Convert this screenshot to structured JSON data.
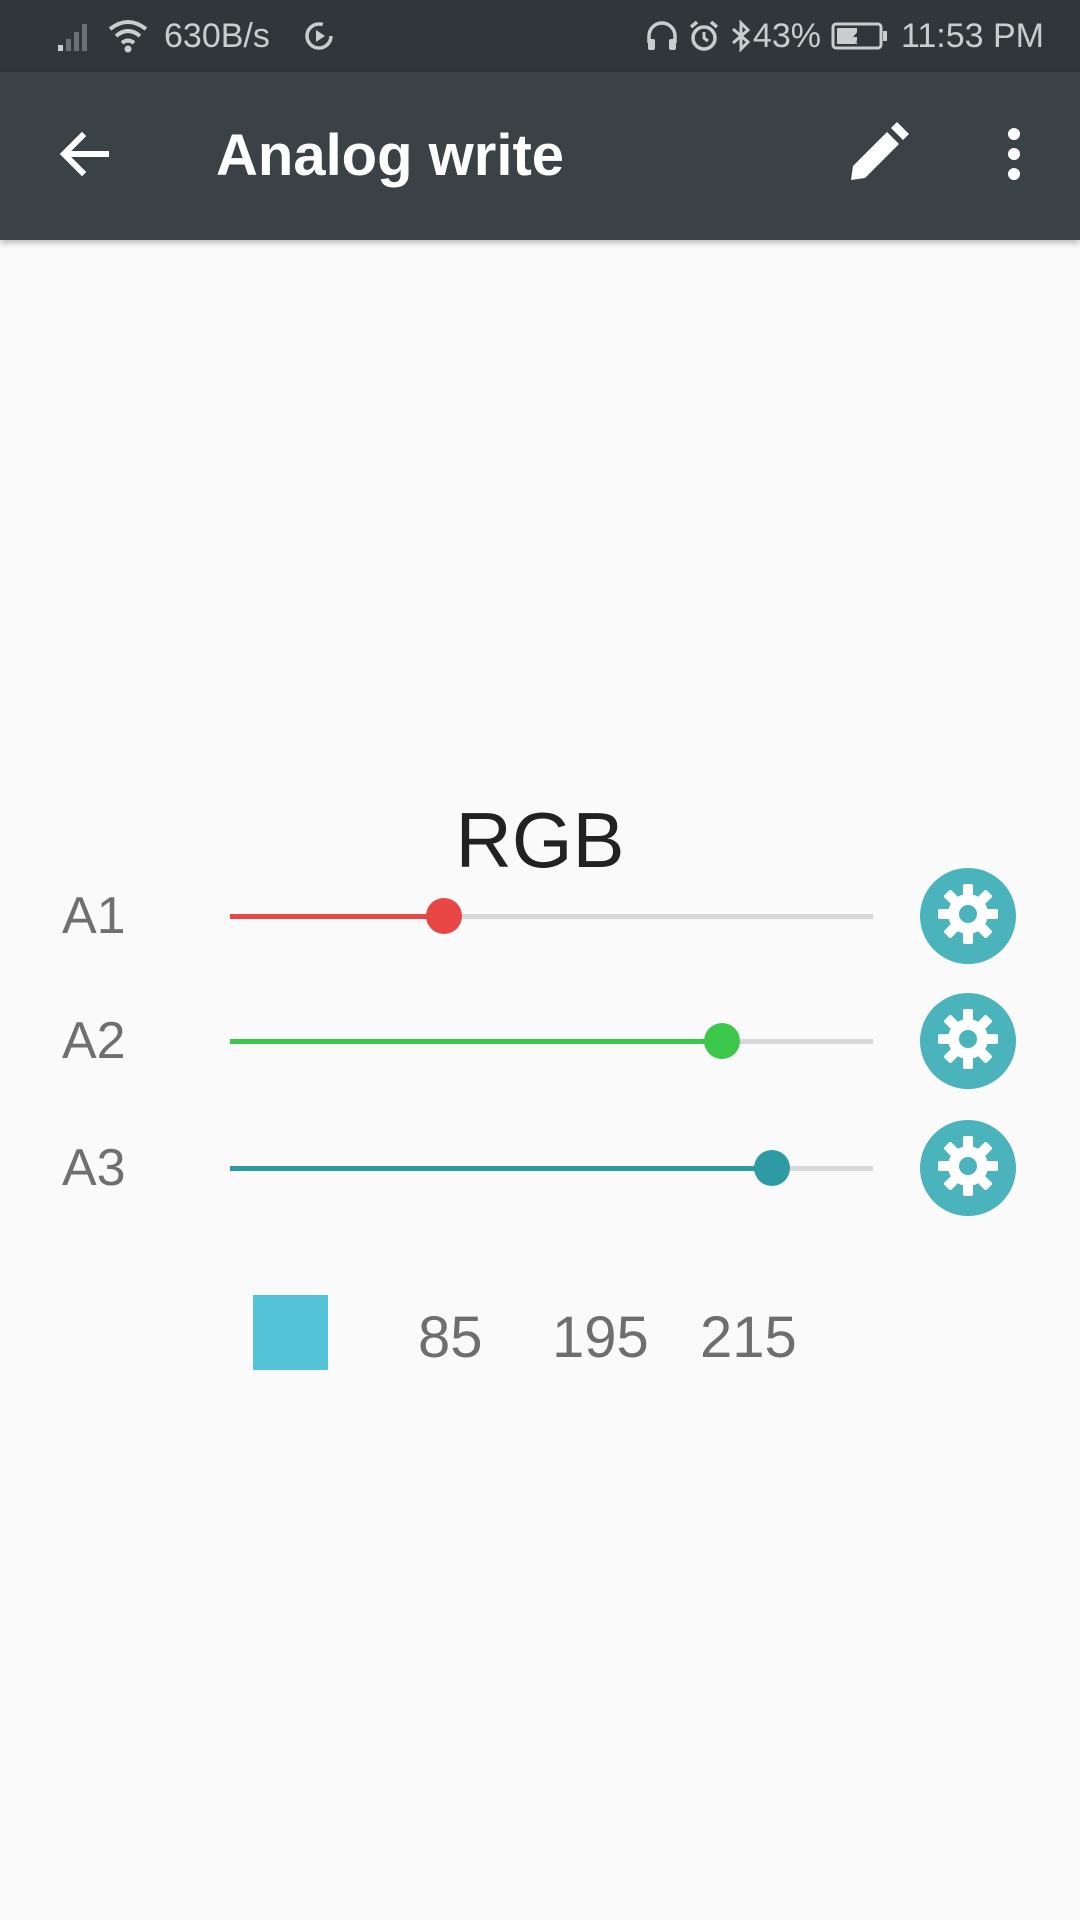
{
  "status_bar": {
    "network_speed": "630B/s",
    "battery_percent": "43%",
    "time": "11:53 PM",
    "icons": [
      "signal-icon",
      "wifi-icon",
      "sync-icon",
      "headphones-icon",
      "alarm-icon",
      "bluetooth-icon",
      "battery-charging-icon"
    ]
  },
  "app_bar": {
    "title": "Analog write",
    "icons": [
      "back-arrow-icon",
      "edit-pencil-icon",
      "more-vert-icon"
    ],
    "background": "#3a4245"
  },
  "widget": {
    "title": "RGB",
    "channels": [
      {
        "label": "A1",
        "value": 85,
        "max": 255,
        "color": "#e84545"
      },
      {
        "label": "A2",
        "value": 195,
        "max": 255,
        "color": "#3dc84c"
      },
      {
        "label": "A3",
        "value": 215,
        "max": 255,
        "color": "#2e9aa3"
      }
    ],
    "swatch_color": "#55c3d7",
    "values_display": [
      "85",
      "195",
      "215"
    ],
    "settings_icon": "gear-icon",
    "accent": "#4ab3bc"
  }
}
